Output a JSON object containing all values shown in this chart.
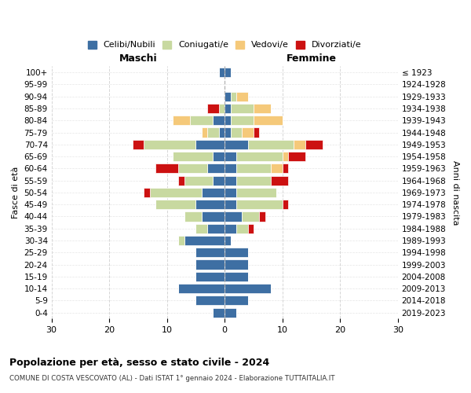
{
  "age_groups": [
    "100+",
    "95-99",
    "90-94",
    "85-89",
    "80-84",
    "75-79",
    "70-74",
    "65-69",
    "60-64",
    "55-59",
    "50-54",
    "45-49",
    "40-44",
    "35-39",
    "30-34",
    "25-29",
    "20-24",
    "15-19",
    "10-14",
    "5-9",
    "0-4"
  ],
  "birth_years": [
    "≤ 1923",
    "1924-1928",
    "1929-1933",
    "1934-1938",
    "1939-1943",
    "1944-1948",
    "1949-1953",
    "1954-1958",
    "1959-1963",
    "1964-1968",
    "1969-1973",
    "1974-1978",
    "1979-1983",
    "1984-1988",
    "1989-1993",
    "1994-1998",
    "1999-2003",
    "2004-2008",
    "2009-2013",
    "2014-2018",
    "2019-2023"
  ],
  "colors": {
    "celibi": "#3e6fa3",
    "coniugati": "#c8d9a0",
    "vedovi": "#f5c97a",
    "divorziati": "#cc1111"
  },
  "maschi": {
    "celibi": [
      1,
      0,
      0,
      0,
      2,
      1,
      5,
      2,
      3,
      2,
      4,
      5,
      4,
      3,
      7,
      5,
      5,
      5,
      8,
      5,
      2
    ],
    "coniugati": [
      0,
      0,
      0,
      1,
      4,
      2,
      9,
      7,
      5,
      5,
      9,
      7,
      3,
      2,
      1,
      0,
      0,
      0,
      0,
      0,
      0
    ],
    "vedovi": [
      0,
      0,
      0,
      0,
      3,
      1,
      0,
      0,
      0,
      0,
      0,
      0,
      0,
      0,
      0,
      0,
      0,
      0,
      0,
      0,
      0
    ],
    "divorziati": [
      0,
      0,
      0,
      2,
      0,
      0,
      2,
      0,
      4,
      1,
      1,
      0,
      0,
      0,
      0,
      0,
      0,
      0,
      0,
      0,
      0
    ]
  },
  "femmine": {
    "celibi": [
      1,
      0,
      1,
      1,
      1,
      1,
      4,
      2,
      2,
      2,
      2,
      2,
      3,
      2,
      1,
      4,
      4,
      4,
      8,
      4,
      2
    ],
    "coniugati": [
      0,
      0,
      1,
      4,
      4,
      2,
      8,
      8,
      6,
      6,
      7,
      8,
      3,
      2,
      0,
      0,
      0,
      0,
      0,
      0,
      0
    ],
    "vedovi": [
      0,
      0,
      2,
      3,
      5,
      2,
      2,
      1,
      2,
      0,
      0,
      0,
      0,
      0,
      0,
      0,
      0,
      0,
      0,
      0,
      0
    ],
    "divorziati": [
      0,
      0,
      0,
      0,
      0,
      1,
      3,
      3,
      1,
      3,
      0,
      1,
      1,
      1,
      0,
      0,
      0,
      0,
      0,
      0,
      0
    ]
  },
  "xlim": 30,
  "title": "Popolazione per età, sesso e stato civile - 2024",
  "subtitle": "COMUNE DI COSTA VESCOVATO (AL) - Dati ISTAT 1° gennaio 2024 - Elaborazione TUTTAITALIA.IT",
  "ylabel_left": "Fasce di età",
  "ylabel_right": "Anni di nascita",
  "xlabel_left": "Maschi",
  "xlabel_right": "Femmine",
  "legend_labels": [
    "Celibi/Nubili",
    "Coniugati/e",
    "Vedovi/e",
    "Divorziati/e"
  ],
  "bg_color": "#ffffff",
  "grid_color": "#cccccc"
}
